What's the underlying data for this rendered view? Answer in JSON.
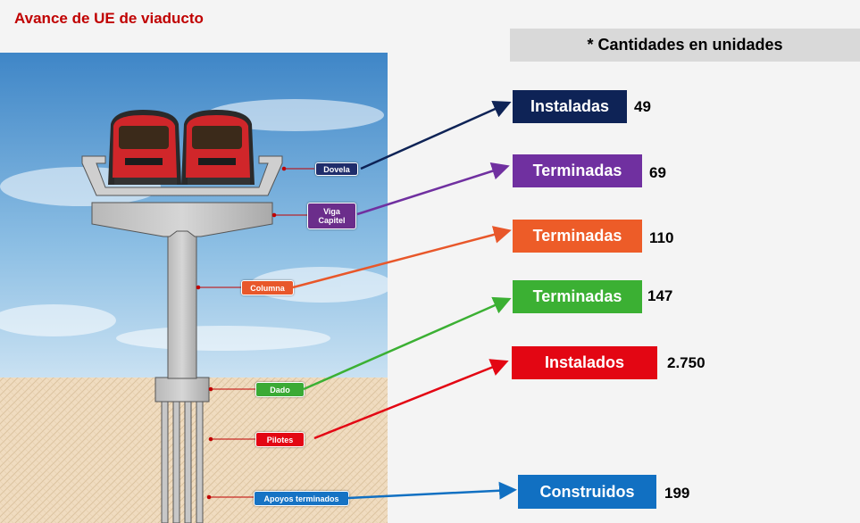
{
  "title": "Avance de UE de viaducto",
  "note": "* Cantidades en unidades",
  "components": [
    {
      "label": "Dovela",
      "color": "#1f2d6b",
      "status": "Instaladas",
      "status_color": "#0e2356",
      "value": "49",
      "arrow_color": "#0e2356"
    },
    {
      "label": "Viga Capitel",
      "color": "#6b2d8b",
      "status": "Terminadas",
      "status_color": "#7030a0",
      "value": "69",
      "arrow_color": "#7030a0"
    },
    {
      "label": "Columna",
      "color": "#e8572a",
      "status": "Terminadas",
      "status_color": "#ed5c28",
      "value": "110",
      "arrow_color": "#e8572a"
    },
    {
      "label": "Dado",
      "color": "#3aaa35",
      "status": "Terminadas",
      "status_color": "#3bb033",
      "value": "147",
      "arrow_color": "#3bb033"
    },
    {
      "label": "Pilotes",
      "color": "#e30613",
      "status": "Instalados",
      "status_color": "#e30613",
      "value": "2.750",
      "arrow_color": "#e30613"
    },
    {
      "label": "Apoyos terminados",
      "color": "#1673c4",
      "status": "Construidos",
      "status_color": "#1170c2",
      "value": "199",
      "arrow_color": "#1170c2"
    }
  ]
}
